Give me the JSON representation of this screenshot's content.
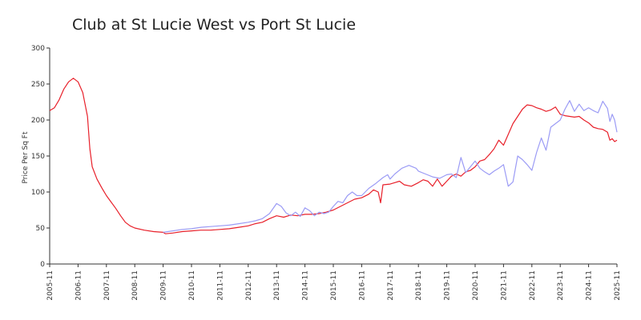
{
  "chart_data": {
    "type": "line",
    "title": "Club at St Lucie West vs Port St Lucie",
    "xlabel": "",
    "ylabel": "Price Per Sq Ft",
    "ylim": [
      0,
      300
    ],
    "yticks": [
      0,
      50,
      100,
      150,
      200,
      250,
      300
    ],
    "xticks": [
      "2005-11",
      "2006-11",
      "2007-11",
      "2008-11",
      "2009-11",
      "2010-11",
      "2011-11",
      "2012-11",
      "2013-11",
      "2014-11",
      "2015-11",
      "2016-11",
      "2017-11",
      "2018-11",
      "2019-11",
      "2020-11",
      "2021-11",
      "2022-11",
      "2023-11",
      "2024-11",
      "2025-11"
    ],
    "grid": false,
    "series": [
      {
        "color": "#e8202a",
        "points": [
          [
            "2005-11",
            213
          ],
          [
            "2006-01",
            217
          ],
          [
            "2006-03",
            228
          ],
          [
            "2006-05",
            243
          ],
          [
            "2006-07",
            253
          ],
          [
            "2006-09",
            258
          ],
          [
            "2006-11",
            253
          ],
          [
            "2007-01",
            238
          ],
          [
            "2007-03",
            205
          ],
          [
            "2007-04",
            160
          ],
          [
            "2007-05",
            135
          ],
          [
            "2007-07",
            118
          ],
          [
            "2007-09",
            106
          ],
          [
            "2007-11",
            95
          ],
          [
            "2008-01",
            86
          ],
          [
            "2008-03",
            77
          ],
          [
            "2008-05",
            67
          ],
          [
            "2008-07",
            58
          ],
          [
            "2008-09",
            53
          ],
          [
            "2008-11",
            50
          ],
          [
            "2009-03",
            47
          ],
          [
            "2009-07",
            45
          ],
          [
            "2009-11",
            44
          ],
          [
            "2009-12",
            42
          ],
          [
            "2010-03",
            43
          ],
          [
            "2010-07",
            45
          ],
          [
            "2010-11",
            46
          ],
          [
            "2011-03",
            47
          ],
          [
            "2011-07",
            47
          ],
          [
            "2011-11",
            48
          ],
          [
            "2012-03",
            49
          ],
          [
            "2012-07",
            51
          ],
          [
            "2012-11",
            53
          ],
          [
            "2013-02",
            56
          ],
          [
            "2013-05",
            58
          ],
          [
            "2013-08",
            63
          ],
          [
            "2013-11",
            67
          ],
          [
            "2014-02",
            65
          ],
          [
            "2014-05",
            68
          ],
          [
            "2014-08",
            67
          ],
          [
            "2014-11",
            69
          ],
          [
            "2015-02",
            69
          ],
          [
            "2015-05",
            70
          ],
          [
            "2015-08",
            72
          ],
          [
            "2015-11",
            75
          ],
          [
            "2016-02",
            80
          ],
          [
            "2016-05",
            85
          ],
          [
            "2016-08",
            90
          ],
          [
            "2016-11",
            92
          ],
          [
            "2017-02",
            97
          ],
          [
            "2017-04",
            103
          ],
          [
            "2017-06",
            100
          ],
          [
            "2017-07",
            85
          ],
          [
            "2017-08",
            110
          ],
          [
            "2017-11",
            111
          ],
          [
            "2018-01",
            113
          ],
          [
            "2018-03",
            115
          ],
          [
            "2018-05",
            110
          ],
          [
            "2018-08",
            108
          ],
          [
            "2018-11",
            113
          ],
          [
            "2019-01",
            117
          ],
          [
            "2019-03",
            115
          ],
          [
            "2019-05",
            108
          ],
          [
            "2019-07",
            118
          ],
          [
            "2019-09",
            108
          ],
          [
            "2019-11",
            115
          ],
          [
            "2020-01",
            122
          ],
          [
            "2020-03",
            125
          ],
          [
            "2020-05",
            122
          ],
          [
            "2020-07",
            128
          ],
          [
            "2020-09",
            130
          ],
          [
            "2020-11",
            135
          ],
          [
            "2021-01",
            143
          ],
          [
            "2021-03",
            145
          ],
          [
            "2021-05",
            152
          ],
          [
            "2021-07",
            160
          ],
          [
            "2021-09",
            172
          ],
          [
            "2021-11",
            165
          ],
          [
            "2022-01",
            180
          ],
          [
            "2022-03",
            195
          ],
          [
            "2022-05",
            205
          ],
          [
            "2022-07",
            215
          ],
          [
            "2022-09",
            221
          ],
          [
            "2022-11",
            220
          ],
          [
            "2023-01",
            217
          ],
          [
            "2023-03",
            215
          ],
          [
            "2023-05",
            212
          ],
          [
            "2023-07",
            214
          ],
          [
            "2023-09",
            218
          ],
          [
            "2023-11",
            208
          ],
          [
            "2024-01",
            206
          ],
          [
            "2024-03",
            205
          ],
          [
            "2024-05",
            204
          ],
          [
            "2024-07",
            205
          ],
          [
            "2024-09",
            200
          ],
          [
            "2024-11",
            196
          ],
          [
            "2025-01",
            190
          ],
          [
            "2025-03",
            188
          ],
          [
            "2025-05",
            187
          ],
          [
            "2025-07",
            183
          ],
          [
            "2025-08",
            172
          ],
          [
            "2025-09",
            174
          ],
          [
            "2025-10",
            170
          ],
          [
            "2025-11",
            172
          ]
        ]
      },
      {
        "color": "#9b9bf5",
        "points": [
          [
            "2009-11",
            44
          ],
          [
            "2010-03",
            46
          ],
          [
            "2010-07",
            48
          ],
          [
            "2010-11",
            49
          ],
          [
            "2011-03",
            51
          ],
          [
            "2011-07",
            52
          ],
          [
            "2011-11",
            53
          ],
          [
            "2012-03",
            54
          ],
          [
            "2012-07",
            56
          ],
          [
            "2012-11",
            58
          ],
          [
            "2013-02",
            60
          ],
          [
            "2013-05",
            63
          ],
          [
            "2013-08",
            70
          ],
          [
            "2013-11",
            84
          ],
          [
            "2014-01",
            80
          ],
          [
            "2014-03",
            71
          ],
          [
            "2014-05",
            67
          ],
          [
            "2014-07",
            72
          ],
          [
            "2014-09",
            66
          ],
          [
            "2014-11",
            78
          ],
          [
            "2015-01",
            74
          ],
          [
            "2015-03",
            67
          ],
          [
            "2015-05",
            72
          ],
          [
            "2015-07",
            70
          ],
          [
            "2015-09",
            72
          ],
          [
            "2015-11",
            80
          ],
          [
            "2016-01",
            87
          ],
          [
            "2016-03",
            85
          ],
          [
            "2016-05",
            95
          ],
          [
            "2016-07",
            100
          ],
          [
            "2016-09",
            95
          ],
          [
            "2016-11",
            95
          ],
          [
            "2017-02",
            105
          ],
          [
            "2017-05",
            112
          ],
          [
            "2017-08",
            120
          ],
          [
            "2017-10",
            124
          ],
          [
            "2017-11",
            118
          ],
          [
            "2018-01",
            125
          ],
          [
            "2018-04",
            133
          ],
          [
            "2018-07",
            137
          ],
          [
            "2018-10",
            133
          ],
          [
            "2018-11",
            129
          ],
          [
            "2019-02",
            125
          ],
          [
            "2019-05",
            121
          ],
          [
            "2019-08",
            119
          ],
          [
            "2019-11",
            124
          ],
          [
            "2020-01",
            125
          ],
          [
            "2020-03",
            120
          ],
          [
            "2020-05",
            148
          ],
          [
            "2020-07",
            127
          ],
          [
            "2020-09",
            135
          ],
          [
            "2020-11",
            143
          ],
          [
            "2021-01",
            133
          ],
          [
            "2021-03",
            128
          ],
          [
            "2021-05",
            124
          ],
          [
            "2021-07",
            129
          ],
          [
            "2021-09",
            133
          ],
          [
            "2021-11",
            138
          ],
          [
            "2022-01",
            108
          ],
          [
            "2022-03",
            114
          ],
          [
            "2022-05",
            150
          ],
          [
            "2022-07",
            145
          ],
          [
            "2022-09",
            138
          ],
          [
            "2022-11",
            130
          ],
          [
            "2023-01",
            155
          ],
          [
            "2023-03",
            175
          ],
          [
            "2023-05",
            158
          ],
          [
            "2023-07",
            190
          ],
          [
            "2023-09",
            195
          ],
          [
            "2023-11",
            200
          ],
          [
            "2024-01",
            215
          ],
          [
            "2024-03",
            227
          ],
          [
            "2024-05",
            212
          ],
          [
            "2024-07",
            222
          ],
          [
            "2024-09",
            213
          ],
          [
            "2024-11",
            217
          ],
          [
            "2025-01",
            213
          ],
          [
            "2025-03",
            210
          ],
          [
            "2025-05",
            226
          ],
          [
            "2025-07",
            216
          ],
          [
            "2025-08",
            198
          ],
          [
            "2025-09",
            208
          ],
          [
            "2025-10",
            200
          ],
          [
            "2025-11",
            183
          ]
        ]
      }
    ]
  }
}
